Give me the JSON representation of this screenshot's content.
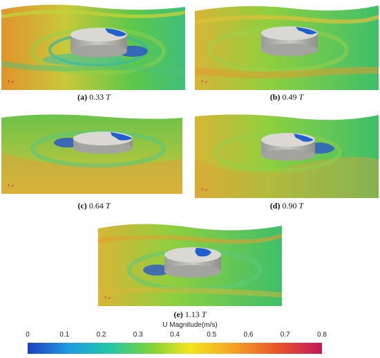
{
  "panels": [
    {
      "letter": "(a)",
      "value": "0.33",
      "unit": "T"
    },
    {
      "letter": "(b)",
      "value": "0.49",
      "unit": "T"
    },
    {
      "letter": "(c)",
      "value": "0.64",
      "unit": "T"
    },
    {
      "letter": "(d)",
      "value": "0.90",
      "unit": "T"
    },
    {
      "letter": "(e)",
      "value": "1.13",
      "unit": "T"
    }
  ],
  "colorbar": {
    "title": "U Magnitude(m/s)",
    "ticks": [
      "0",
      "0.1",
      "0.2",
      "0.3",
      "0.4",
      "0.5",
      "0.6",
      "0.7",
      "0.8"
    ],
    "range": [
      0,
      0.8
    ],
    "colors": [
      "#1f3fbf",
      "#1e9be0",
      "#22c7a4",
      "#7fd23a",
      "#f2e61e",
      "#f4a226",
      "#e8542a",
      "#c2185b"
    ]
  }
}
